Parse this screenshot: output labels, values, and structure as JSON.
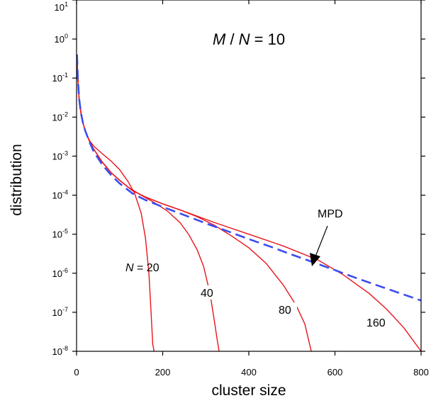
{
  "chart_data": {
    "type": "line",
    "title": "",
    "xlabel": "cluster size",
    "ylabel": "distribution",
    "xlim": [
      0,
      800
    ],
    "ylim": [
      1e-08,
      10
    ],
    "yscale": "log",
    "grid": false,
    "x_ticks": [
      {
        "value": 0,
        "label": "0"
      },
      {
        "value": 200,
        "label": "200"
      },
      {
        "value": 400,
        "label": "400"
      },
      {
        "value": 600,
        "label": "600"
      },
      {
        "value": 800,
        "label": "800"
      }
    ],
    "y_ticks": [
      {
        "value": 10,
        "base": "10",
        "exp": "1"
      },
      {
        "value": 1,
        "base": "10",
        "exp": "0"
      },
      {
        "value": 0.1,
        "base": "10",
        "exp": "-1"
      },
      {
        "value": 0.01,
        "base": "10",
        "exp": "-2"
      },
      {
        "value": 0.001,
        "base": "10",
        "exp": "-3"
      },
      {
        "value": 0.0001,
        "base": "10",
        "exp": "-4"
      },
      {
        "value": 1e-05,
        "base": "10",
        "exp": "-5"
      },
      {
        "value": 1e-06,
        "base": "10",
        "exp": "-6"
      },
      {
        "value": 1e-07,
        "base": "10",
        "exp": "-7"
      },
      {
        "value": 1e-08,
        "base": "10",
        "exp": "-8"
      }
    ],
    "annotation_main": {
      "italic_a": "M",
      "sep": " / ",
      "italic_b": "N",
      "rest": " = 10"
    },
    "series": [
      {
        "label": "N = 20",
        "label_italic": "N",
        "label_rest": " = 20",
        "color": "#e8141c",
        "style": "solid",
        "x": [
          1,
          3,
          6,
          10,
          15,
          20,
          30,
          40,
          60,
          80,
          100,
          120,
          135,
          150,
          160,
          168,
          173,
          177,
          180
        ],
        "y": [
          0.4,
          0.1,
          0.03,
          0.013,
          0.007,
          0.0045,
          0.0025,
          0.0018,
          0.00115,
          0.00075,
          0.00045,
          0.00022,
          0.00011,
          3.5e-05,
          8e-06,
          1e-06,
          1e-07,
          1.5e-08,
          1e-08
        ]
      },
      {
        "label": "40",
        "color": "#e8141c",
        "style": "solid",
        "x": [
          1,
          3,
          6,
          10,
          15,
          20,
          30,
          40,
          60,
          80,
          100,
          120,
          150,
          180,
          210,
          240,
          260,
          280,
          295,
          310,
          320,
          327,
          331
        ],
        "y": [
          0.4,
          0.1,
          0.03,
          0.013,
          0.007,
          0.0045,
          0.0024,
          0.0015,
          0.0007,
          0.00038,
          0.00024,
          0.00016,
          0.0001,
          6.5e-05,
          4e-05,
          2e-05,
          1e-05,
          4e-06,
          1.5e-06,
          3e-07,
          6e-08,
          1.8e-08,
          1e-08
        ]
      },
      {
        "label": "80",
        "color": "#e8141c",
        "style": "solid",
        "x": [
          1,
          3,
          6,
          10,
          15,
          20,
          30,
          40,
          60,
          80,
          100,
          130,
          160,
          200,
          240,
          280,
          320,
          360,
          400,
          440,
          480,
          510,
          530,
          545
        ],
        "y": [
          0.4,
          0.1,
          0.03,
          0.013,
          0.007,
          0.0045,
          0.0024,
          0.0015,
          0.0007,
          0.00038,
          0.00024,
          0.00013,
          9e-05,
          6e-05,
          4.2e-05,
          2.8e-05,
          1.7e-05,
          9e-06,
          4.5e-06,
          1.8e-06,
          5e-07,
          1.5e-07,
          5e-08,
          1e-08
        ]
      },
      {
        "label": "160",
        "color": "#e8141c",
        "style": "solid",
        "x": [
          1,
          3,
          6,
          10,
          15,
          20,
          30,
          40,
          60,
          80,
          100,
          130,
          160,
          200,
          240,
          280,
          320,
          400,
          480,
          560,
          620,
          680,
          720,
          760,
          800
        ],
        "y": [
          0.4,
          0.1,
          0.03,
          0.013,
          0.007,
          0.0045,
          0.0024,
          0.0015,
          0.0007,
          0.00038,
          0.00024,
          0.00013,
          9e-05,
          6e-05,
          4.2e-05,
          2.9e-05,
          2e-05,
          1e-05,
          5e-06,
          2.2e-06,
          9e-07,
          3e-07,
          1.2e-07,
          4e-08,
          1e-08
        ]
      },
      {
        "label": "MPD",
        "color": "#3b4cf0",
        "style": "dashed",
        "x": [
          1,
          3,
          6,
          10,
          15,
          20,
          30,
          40,
          60,
          80,
          100,
          130,
          160,
          200,
          250,
          300,
          350,
          400,
          450,
          500,
          550,
          600,
          650,
          700,
          750,
          800
        ],
        "y": [
          0.4,
          0.1,
          0.03,
          0.013,
          0.007,
          0.0045,
          0.0023,
          0.0013,
          0.0006,
          0.00033,
          0.0002,
          0.00011,
          7.5e-05,
          5e-05,
          3.1e-05,
          1.9e-05,
          1.2e-05,
          7.5e-06,
          4.8e-06,
          3e-06,
          1.9e-06,
          1.2e-06,
          7.5e-07,
          4.8e-07,
          3.1e-07,
          2e-07
        ]
      }
    ]
  }
}
